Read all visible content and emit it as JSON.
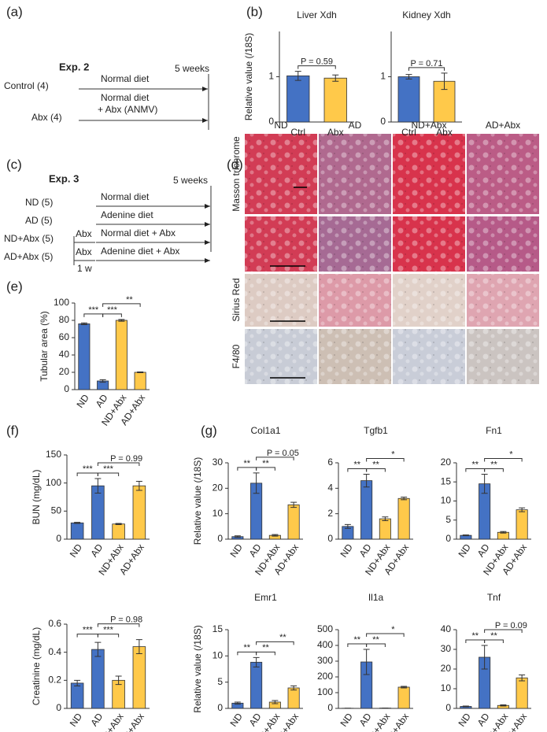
{
  "panel_labels": [
    "(a)",
    "(b)",
    "(c)",
    "(d)",
    "(e)",
    "(f)",
    "(g)"
  ],
  "exp2": {
    "title": "Exp. 2",
    "duration": "5 weeks",
    "groups": [
      {
        "label": "Control (4)",
        "treatment": [
          "Normal diet"
        ]
      },
      {
        "label": "Abx (4)",
        "treatment": [
          "Normal diet",
          "+ Abx (ANMV)"
        ]
      }
    ]
  },
  "exp3": {
    "title": "Exp. 3",
    "duration": "5 weeks",
    "pretreatment_duration": "1 w",
    "groups": [
      {
        "label": "ND (5)",
        "treatment": "Normal diet"
      },
      {
        "label": "AD (5)",
        "treatment": "Adenine diet"
      },
      {
        "label": "ND+Abx (5)",
        "pretreatment": "Abx",
        "treatment": "Normal diet + Abx"
      },
      {
        "label": "AD+Abx (5)",
        "pretreatment": "Abx",
        "treatment": "Adenine diet + Abx"
      }
    ]
  },
  "histology": {
    "columns": [
      "ND",
      "AD",
      "ND+Abx",
      "AD+Abx"
    ],
    "rows": [
      "Masson trichrome",
      "Sirius Red",
      "F4/80"
    ]
  },
  "chart_data": [
    {
      "type": "bar",
      "title": "Liver Xdh",
      "ylabel": "Relative value (/18S)",
      "categories": [
        "Ctrl",
        "Abx"
      ],
      "values": [
        1.02,
        0.97
      ],
      "errors": [
        0.1,
        0.07
      ],
      "colors": [
        "#4472c4",
        "#ffc94a"
      ],
      "ylim": [
        0,
        2
      ],
      "yticks": [
        0,
        1
      ],
      "annotations": [
        "P = 0.59"
      ]
    },
    {
      "type": "bar",
      "title": "Kidney Xdh",
      "categories": [
        "Ctrl",
        "Abx"
      ],
      "values": [
        1.0,
        0.9
      ],
      "errors": [
        0.05,
        0.18
      ],
      "colors": [
        "#4472c4",
        "#ffc94a"
      ],
      "ylim": [
        0,
        2
      ],
      "yticks": [
        0,
        1
      ],
      "annotations": [
        "P = 0.71"
      ]
    },
    {
      "type": "bar",
      "ylabel": "Tubular area (%)",
      "categories": [
        "ND",
        "AD",
        "ND+Abx",
        "AD+Abx"
      ],
      "values": [
        76,
        10,
        80,
        20
      ],
      "errors": [
        1,
        1.5,
        1,
        0.5
      ],
      "colors": [
        "#4472c4",
        "#4472c4",
        "#ffc94a",
        "#ffc94a"
      ],
      "ylim": [
        0,
        100
      ],
      "yticks": [
        0,
        20,
        40,
        60,
        80,
        100
      ],
      "annotations": [
        "***",
        "***",
        "**"
      ]
    },
    {
      "type": "bar",
      "ylabel": "BUN (mg/dL)",
      "categories": [
        "ND",
        "AD",
        "ND+Abx",
        "AD+Abx"
      ],
      "values": [
        29,
        95,
        27,
        95
      ],
      "errors": [
        1,
        13,
        1,
        8
      ],
      "colors": [
        "#4472c4",
        "#4472c4",
        "#ffc94a",
        "#ffc94a"
      ],
      "ylim": [
        0,
        150
      ],
      "yticks": [
        0,
        50,
        100,
        150
      ],
      "annotations": [
        "***",
        "***",
        "P = 0.99"
      ]
    },
    {
      "type": "bar",
      "ylabel": "Creatinine (mg/dL)",
      "categories": [
        "ND",
        "AD",
        "ND+Abx",
        "AD+Abx"
      ],
      "values": [
        0.18,
        0.42,
        0.2,
        0.44
      ],
      "errors": [
        0.02,
        0.05,
        0.03,
        0.05
      ],
      "colors": [
        "#4472c4",
        "#4472c4",
        "#ffc94a",
        "#ffc94a"
      ],
      "ylim": [
        0,
        0.6
      ],
      "yticks": [
        0,
        0.2,
        0.4,
        0.6
      ],
      "annotations": [
        "***",
        "***",
        "P = 0.98"
      ]
    },
    {
      "type": "bar",
      "title": "Col1a1",
      "ylabel": "Relative value (/18S)",
      "categories": [
        "ND",
        "AD",
        "ND+Abx",
        "AD+Abx"
      ],
      "values": [
        1,
        22,
        1.5,
        13.5
      ],
      "errors": [
        0.3,
        4,
        0.3,
        1
      ],
      "colors": [
        "#4472c4",
        "#4472c4",
        "#ffc94a",
        "#ffc94a"
      ],
      "ylim": [
        0,
        30
      ],
      "yticks": [
        0,
        10,
        20,
        30
      ],
      "annotations": [
        "**",
        "**",
        "P = 0.05"
      ]
    },
    {
      "type": "bar",
      "title": "Tgfb1",
      "categories": [
        "ND",
        "AD",
        "ND+Abx",
        "AD+Abx"
      ],
      "values": [
        1,
        4.6,
        1.6,
        3.2
      ],
      "errors": [
        0.15,
        0.5,
        0.15,
        0.1
      ],
      "colors": [
        "#4472c4",
        "#4472c4",
        "#ffc94a",
        "#ffc94a"
      ],
      "ylim": [
        0,
        6
      ],
      "yticks": [
        0,
        2,
        4,
        6
      ],
      "annotations": [
        "**",
        "**",
        "*"
      ]
    },
    {
      "type": "bar",
      "title": "Fn1",
      "categories": [
        "ND",
        "AD",
        "ND+Abx",
        "AD+Abx"
      ],
      "values": [
        1,
        14.5,
        1.8,
        7.7
      ],
      "errors": [
        0.1,
        2.5,
        0.2,
        0.5
      ],
      "colors": [
        "#4472c4",
        "#4472c4",
        "#ffc94a",
        "#ffc94a"
      ],
      "ylim": [
        0,
        20
      ],
      "yticks": [
        0,
        5,
        10,
        15,
        20
      ],
      "annotations": [
        "**",
        "**",
        "*"
      ]
    },
    {
      "type": "bar",
      "title": "Emr1",
      "ylabel": "Relative value (/18S)",
      "categories": [
        "ND",
        "AD",
        "ND+Abx",
        "AD+Abx"
      ],
      "values": [
        1,
        8.8,
        1.2,
        3.9
      ],
      "errors": [
        0.2,
        0.9,
        0.3,
        0.4
      ],
      "colors": [
        "#4472c4",
        "#4472c4",
        "#ffc94a",
        "#ffc94a"
      ],
      "ylim": [
        0,
        15
      ],
      "yticks": [
        0,
        5,
        10,
        15
      ],
      "annotations": [
        "**",
        "**",
        "**"
      ]
    },
    {
      "type": "bar",
      "title": "Il1a",
      "categories": [
        "ND",
        "AD",
        "ND+Abx",
        "AD+Abx"
      ],
      "values": [
        1,
        295,
        2,
        135
      ],
      "errors": [
        0,
        80,
        0,
        5
      ],
      "colors": [
        "#4472c4",
        "#4472c4",
        "#ffc94a",
        "#ffc94a"
      ],
      "ylim": [
        0,
        500
      ],
      "yticks": [
        0,
        100,
        200,
        300,
        400,
        500
      ],
      "annotations": [
        "**",
        "**",
        "*"
      ]
    },
    {
      "type": "bar",
      "title": "Tnf",
      "categories": [
        "ND",
        "AD",
        "ND+Abx",
        "AD+Abx"
      ],
      "values": [
        1,
        26,
        1.5,
        15.5
      ],
      "errors": [
        0.2,
        6,
        0.3,
        1.5
      ],
      "colors": [
        "#4472c4",
        "#4472c4",
        "#ffc94a",
        "#ffc94a"
      ],
      "ylim": [
        0,
        40
      ],
      "yticks": [
        0,
        10,
        20,
        30,
        40
      ],
      "annotations": [
        "**",
        "**",
        "P = 0.09"
      ]
    }
  ]
}
